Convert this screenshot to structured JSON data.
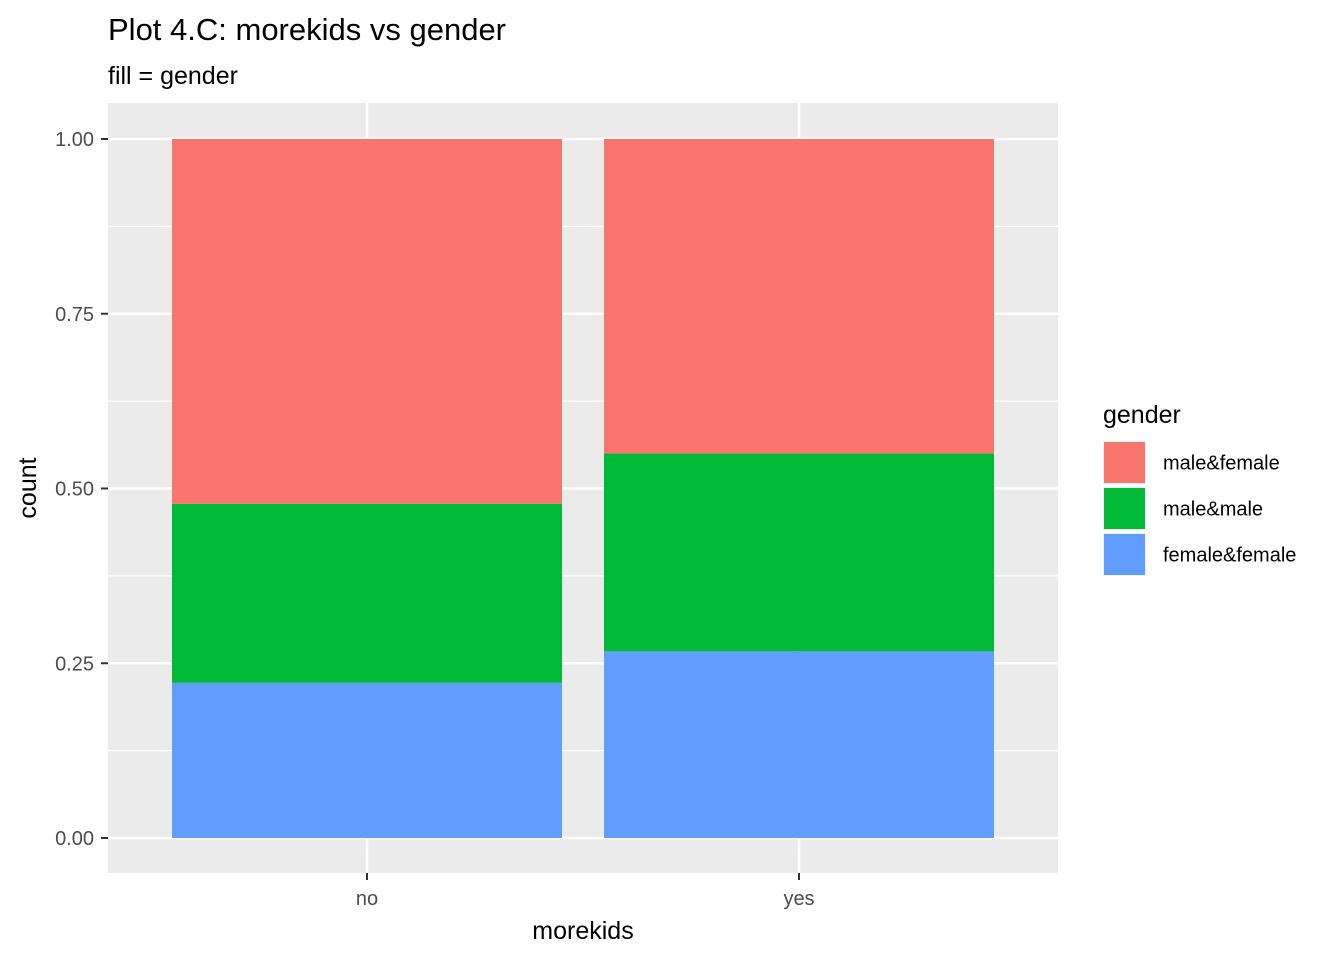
{
  "chart_data": {
    "type": "bar",
    "stacked": true,
    "title": "Plot 4.C: morekids vs gender",
    "subtitle": "fill = gender",
    "xlabel": "morekids",
    "ylabel": "count",
    "categories": [
      "no",
      "yes"
    ],
    "ylim": [
      0,
      1
    ],
    "yticks": [
      0,
      0.25,
      0.5,
      0.75,
      1
    ],
    "ytick_labels": [
      "0.00",
      "0.25",
      "0.50",
      "0.75",
      "1.00"
    ],
    "grid": true,
    "panel_background": "#EBEBEB",
    "legend": {
      "title": "gender",
      "position": "right"
    },
    "series": [
      {
        "name": "male&female",
        "color": "#F8766D",
        "values": [
          0.522,
          0.45
        ]
      },
      {
        "name": "male&male",
        "color": "#00BA38",
        "values": [
          0.256,
          0.283
        ]
      },
      {
        "name": "female&female",
        "color": "#619CFF",
        "values": [
          0.222,
          0.267
        ]
      }
    ],
    "stack_order_bottom_to_top": [
      "female&female",
      "male&male",
      "male&female"
    ]
  }
}
